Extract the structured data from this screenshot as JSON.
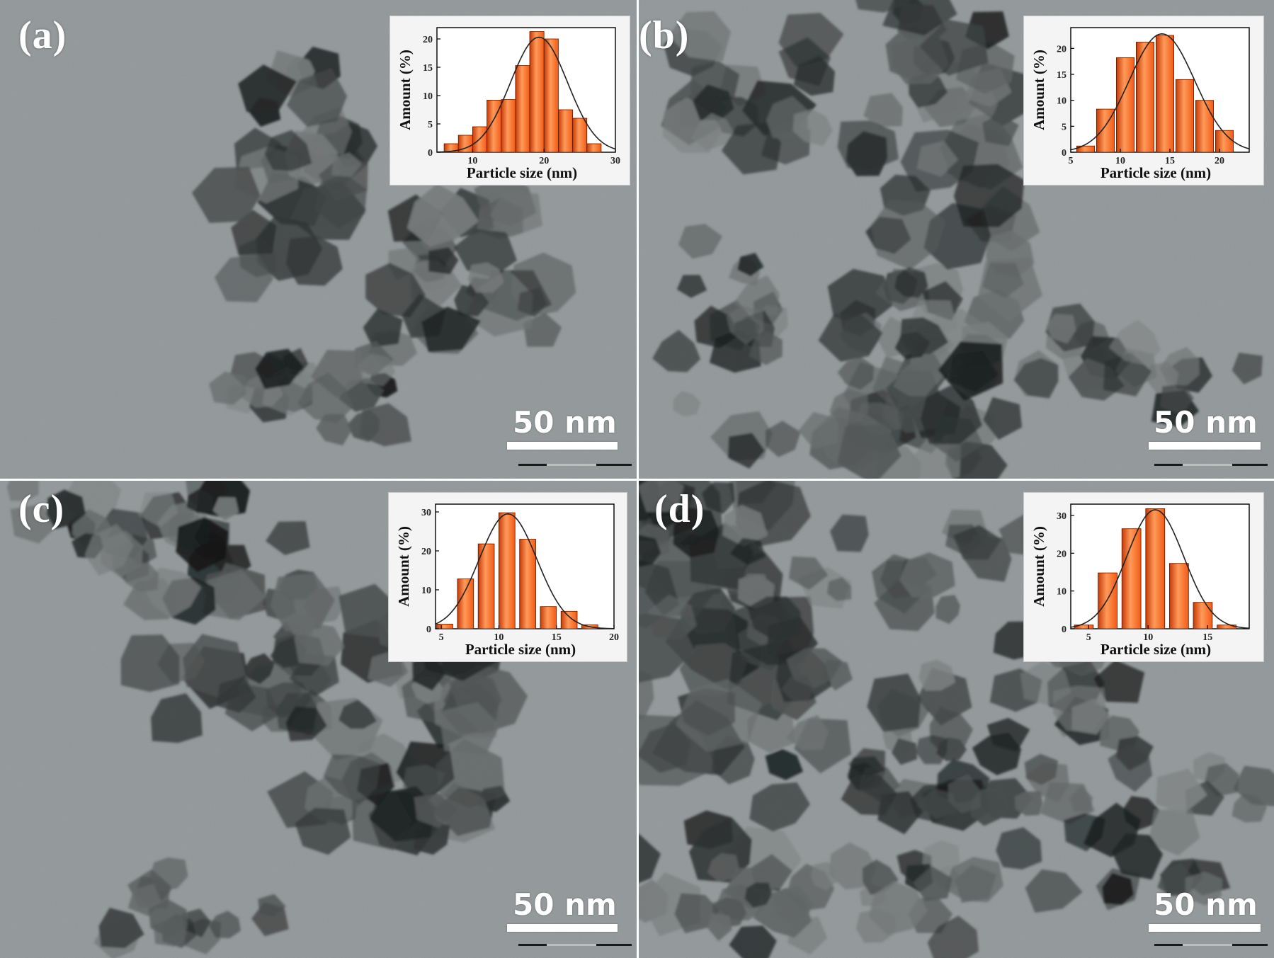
{
  "panels": [
    {
      "id": "a",
      "letter": "(a)",
      "scale_label": "50 nm",
      "inset": {
        "chart_data": {
          "type": "bar",
          "xlabel": "Particle size (nm)",
          "ylabel": "Amount (%)",
          "xlim": [
            5,
            30
          ],
          "ylim": [
            0,
            22
          ],
          "xticks": [
            10,
            20,
            30
          ],
          "yticks": [
            0,
            5,
            10,
            15,
            20
          ],
          "bin_width": 2,
          "x": [
            7,
            9,
            11,
            13,
            15,
            17,
            19,
            21,
            23,
            25,
            27
          ],
          "values": [
            1.5,
            3,
            4.5,
            9.2,
            9.3,
            15.3,
            21.3,
            20,
            7.5,
            6,
            1.5
          ],
          "fit": {
            "type": "gaussian",
            "mean": 19.3,
            "sigma": 4.0,
            "peak": 20.3
          }
        }
      }
    },
    {
      "id": "b",
      "letter": "(b)",
      "scale_label": "50 nm",
      "inset": {
        "chart_data": {
          "type": "bar",
          "xlabel": "Particle size (nm)",
          "ylabel": "Amount (%)",
          "xlim": [
            5,
            23
          ],
          "ylim": [
            0,
            24
          ],
          "xticks": [
            5,
            10,
            15,
            20
          ],
          "yticks": [
            0,
            5,
            10,
            15,
            20
          ],
          "bin_width": 1.8,
          "x": [
            6.5,
            8.5,
            10.5,
            12.5,
            14.5,
            16.5,
            18.5,
            20.5
          ],
          "values": [
            1.2,
            8.3,
            18.2,
            21.2,
            22.5,
            14,
            10,
            4.2
          ],
          "fit": {
            "type": "gaussian",
            "mean": 14.2,
            "sigma": 3.3,
            "peak": 22.8
          }
        }
      }
    },
    {
      "id": "c",
      "letter": "(c)",
      "scale_label": "50 nm",
      "inset": {
        "chart_data": {
          "type": "bar",
          "xlabel": "Particle size (nm)",
          "ylabel": "Amount (%)",
          "xlim": [
            4.5,
            20
          ],
          "ylim": [
            0,
            32
          ],
          "xticks": [
            5,
            10,
            15,
            20
          ],
          "yticks": [
            0,
            10,
            20,
            30
          ],
          "bin_width": 1.4,
          "x": [
            5.3,
            7.1,
            8.9,
            10.7,
            12.5,
            14.3,
            16.1,
            17.9,
            19.3
          ],
          "values": [
            1.2,
            12.8,
            21.8,
            29.8,
            23,
            5.7,
            4.5,
            1,
            0
          ],
          "fit": {
            "type": "gaussian",
            "mean": 10.8,
            "sigma": 2.5,
            "peak": 29.5
          }
        }
      }
    },
    {
      "id": "d",
      "letter": "(d)",
      "scale_label": "50 nm",
      "inset": {
        "chart_data": {
          "type": "bar",
          "xlabel": "Particle size (nm)",
          "ylabel": "Amount (%)",
          "xlim": [
            3.5,
            18.5
          ],
          "ylim": [
            0,
            33
          ],
          "xticks": [
            5,
            10,
            15
          ],
          "yticks": [
            0,
            10,
            20,
            30
          ],
          "bin_width": 1.6,
          "x": [
            4.6,
            6.6,
            8.6,
            10.6,
            12.6,
            14.6,
            16.6,
            18
          ],
          "values": [
            1,
            14.8,
            26.5,
            31.8,
            17.3,
            7,
            1,
            0
          ],
          "fit": {
            "type": "gaussian",
            "mean": 10.6,
            "sigma": 2.4,
            "peak": 31.5
          }
        }
      }
    }
  ],
  "colors": {
    "bar_fill": "#f25a14",
    "bar_dark": "#c63a06",
    "bar_light": "#ff9a5a",
    "fit_line": "#222222",
    "tem_background": "#8f9596",
    "particle_dark": "#161616"
  }
}
